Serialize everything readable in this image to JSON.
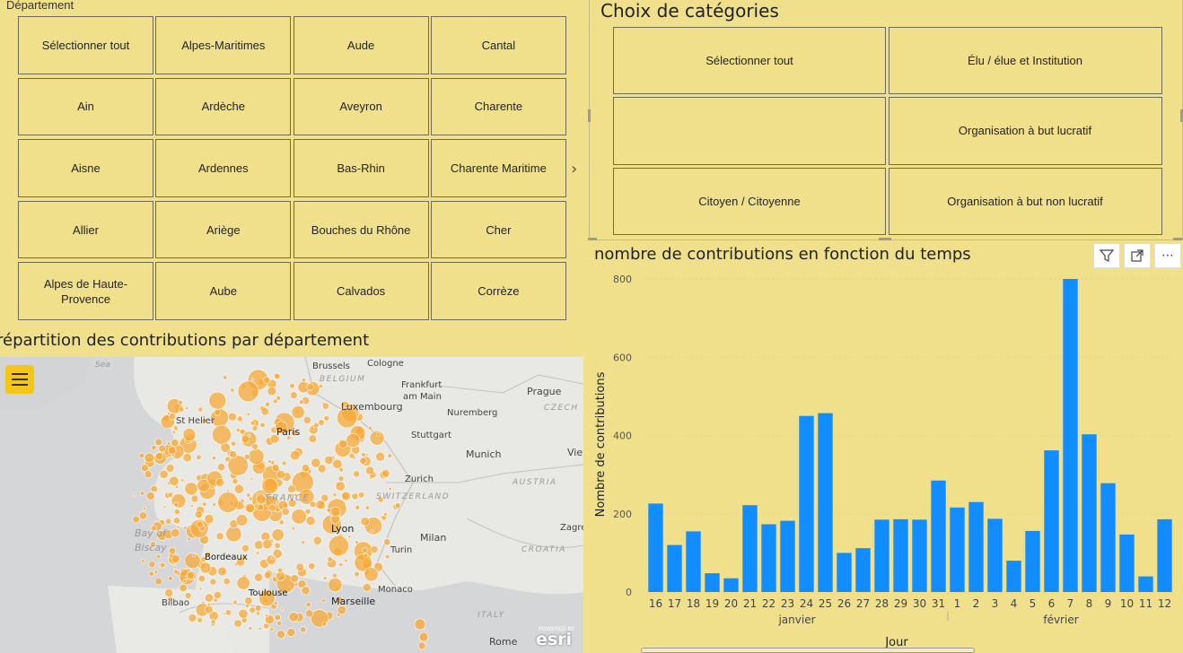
{
  "departement": {
    "title": "Département",
    "tiles": [
      "Sélectionner tout",
      "Alpes-Maritimes",
      "Aude",
      "Cantal",
      "Ain",
      "Ardèche",
      "Aveyron",
      "Charente",
      "Aisne",
      "Ardennes",
      "Bas-Rhin",
      "Charente Maritime",
      "Allier",
      "Ariège",
      "Bouches du Rhône",
      "Cher",
      "Alpes de Haute-Provence",
      "Aube",
      "Calvados",
      "Corrèze"
    ],
    "next_icon": "chevron-right-icon"
  },
  "categories": {
    "title": "Choix de catégories",
    "tiles": [
      "Sélectionner tout",
      "Élu / élue et Institution",
      "",
      "Organisation à but lucratif",
      "Citoyen / Citoyenne",
      "Organisation à but non lucratif"
    ]
  },
  "map": {
    "title": "répartition des contributions par département",
    "labels": [
      "Sea",
      "Brussels",
      "Cologne",
      "BELGIUM",
      "Frankfurt",
      "am Main",
      "Prague",
      "CZECH",
      "Luxembourg",
      "Nuremberg",
      "St Helier",
      "Paris",
      "Stuttgart",
      "Munich",
      "Vie",
      "AUSTRIA",
      "Zurich",
      "FRANCE",
      "SWITZERLAND",
      "Bay of",
      "Biscay",
      "Lyon",
      "Milan",
      "Zagre",
      "Turin",
      "CROATIA",
      "Bordeaux",
      "Toulouse",
      "Monaco",
      "Bilbao",
      "Marseille",
      "ITALY",
      "Rome"
    ],
    "attribution": "esri",
    "attribution_small": "POWERED BY",
    "dot_color": "#f7a93a",
    "menu_icon": "hamburger-menu-icon"
  },
  "chart": {
    "title": "nombre de contributions en fonction du temps",
    "toolbar": [
      "filter-icon",
      "focus-mode-icon",
      "more-options-icon"
    ],
    "bar_color": "#118dff"
  },
  "chart_data": {
    "type": "bar",
    "categories": [
      "16",
      "17",
      "18",
      "19",
      "20",
      "21",
      "22",
      "23",
      "24",
      "25",
      "26",
      "27",
      "28",
      "29",
      "30",
      "31",
      "1",
      "2",
      "3",
      "4",
      "5",
      "6",
      "7",
      "8",
      "9",
      "10",
      "11",
      "12"
    ],
    "values": [
      226,
      120,
      155,
      48,
      35,
      222,
      173,
      182,
      450,
      457,
      100,
      112,
      185,
      186,
      185,
      285,
      216,
      230,
      187,
      80,
      156,
      362,
      800,
      403,
      278,
      147,
      40,
      186
    ],
    "month_labels": [
      "janvier",
      "février"
    ],
    "xlabel": "Jour",
    "ylabel": "Nombre de contributions",
    "ylim": [
      0,
      800
    ],
    "yticks": [
      0,
      200,
      400,
      600,
      800
    ]
  }
}
